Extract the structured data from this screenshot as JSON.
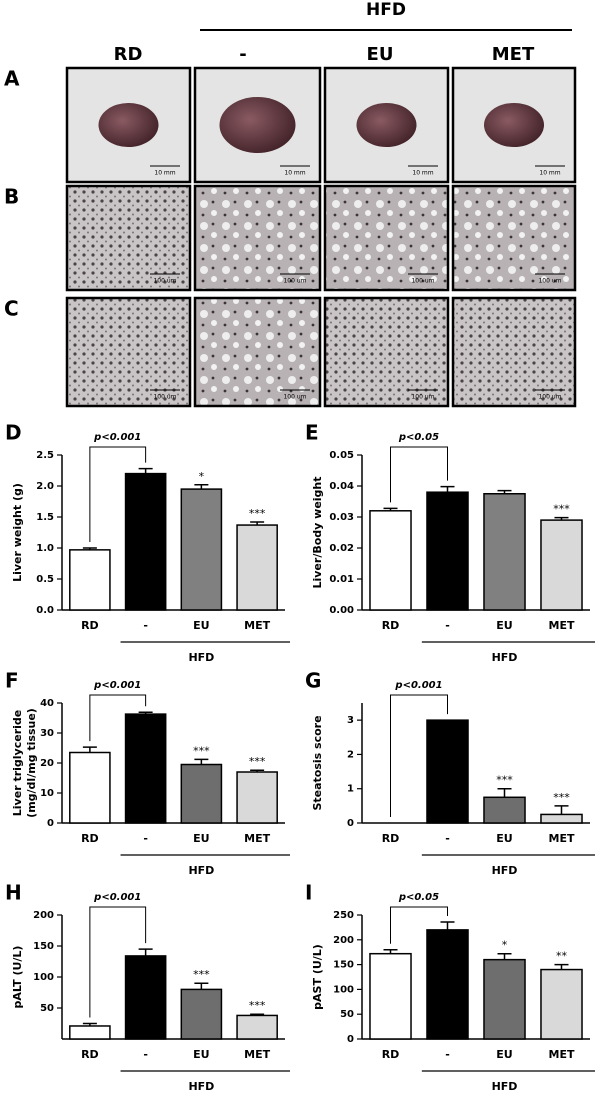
{
  "header": {
    "group": "HFD",
    "columns": [
      "RD",
      "-",
      "EU",
      "MET"
    ]
  },
  "image_rows": [
    {
      "label": "A",
      "scale_bars": [
        "10 mm",
        "10 mm",
        "10 mm",
        "10 mm"
      ]
    },
    {
      "label": "B",
      "scale_bars": [
        "100 um",
        "100 um",
        "100 um",
        "100 um"
      ]
    },
    {
      "label": "C",
      "scale_bars": [
        "100 um",
        "100 um",
        "100 um",
        "100 um"
      ]
    }
  ],
  "chart_data": [
    {
      "type": "bar",
      "panel": "D",
      "ylabel": [
        "Liver weight (g)"
      ],
      "categories": [
        "RD",
        "-",
        "EU",
        "MET"
      ],
      "group": "HFD",
      "values": [
        0.97,
        2.2,
        1.95,
        1.37
      ],
      "errors": [
        0.03,
        0.08,
        0.07,
        0.05
      ],
      "colors": [
        "#ffffff",
        "#000000",
        "#808080",
        "#d9d9d9"
      ],
      "significance": [
        null,
        null,
        "*",
        "***"
      ],
      "comparison": "p<0.001",
      "ylim": [
        0,
        2.5
      ],
      "yticks": [
        {
          "value": 0,
          "label": "0.0"
        },
        0.5,
        {
          "value": 1,
          "label": "1.0"
        },
        1.5,
        {
          "value": 2,
          "label": "2.0"
        },
        2.5
      ]
    },
    {
      "type": "bar",
      "panel": "E",
      "ylabel": [
        "Liver/Body weight"
      ],
      "categories": [
        "RD",
        "-",
        "EU",
        "MET"
      ],
      "group": "HFD",
      "values": [
        0.032,
        0.038,
        0.0375,
        0.029
      ],
      "errors": [
        0.0008,
        0.0018,
        0.001,
        0.0008
      ],
      "colors": [
        "#ffffff",
        "#000000",
        "#808080",
        "#d9d9d9"
      ],
      "significance": [
        null,
        null,
        null,
        "***"
      ],
      "comparison": "p<0.05",
      "ylim": [
        0,
        0.05
      ],
      "yticks": [
        {
          "value": 0,
          "label": "0.00"
        },
        0.01,
        0.02,
        0.03,
        0.04,
        0.05
      ]
    },
    {
      "type": "bar",
      "panel": "F",
      "ylabel": [
        "Liver triglyceride",
        "(mg/dl/mg tissue)"
      ],
      "categories": [
        "RD",
        "-",
        "EU",
        "MET"
      ],
      "group": "HFD",
      "values": [
        23.5,
        36.3,
        19.5,
        17
      ],
      "errors": [
        1.8,
        0.6,
        1.7,
        0.6
      ],
      "colors": [
        "#ffffff",
        "#000000",
        "#6e6e6e",
        "#d9d9d9"
      ],
      "significance": [
        null,
        null,
        "***",
        "***"
      ],
      "comparison": "p<0.001",
      "ylim": [
        0,
        40
      ],
      "yticks": [
        0,
        10,
        20,
        30,
        40
      ]
    },
    {
      "type": "bar",
      "panel": "G",
      "ylabel": [
        "Steatosis score"
      ],
      "categories": [
        "RD",
        "-",
        "EU",
        "MET"
      ],
      "group": "HFD",
      "values": [
        0,
        3,
        0.75,
        0.25
      ],
      "errors": [
        0,
        0,
        0.25,
        0.25
      ],
      "colors": [
        "#ffffff",
        "#000000",
        "#6e6e6e",
        "#d9d9d9"
      ],
      "significance": [
        null,
        null,
        "***",
        "***"
      ],
      "comparison": "p<0.001",
      "ylim": [
        0,
        3.5
      ],
      "yticks": [
        0,
        1,
        2,
        3
      ]
    },
    {
      "type": "bar",
      "panel": "H",
      "ylabel": [
        "pALT (U/L)"
      ],
      "categories": [
        "RD",
        "-",
        "EU",
        "MET"
      ],
      "group": "HFD",
      "values": [
        21,
        134,
        80,
        38
      ],
      "errors": [
        4,
        11,
        10,
        2
      ],
      "colors": [
        "#ffffff",
        "#000000",
        "#6e6e6e",
        "#d9d9d9"
      ],
      "significance": [
        null,
        null,
        "***",
        "***"
      ],
      "comparison": "p<0.001",
      "ylim": [
        0,
        200
      ],
      "yticks": [
        50,
        100,
        150,
        200
      ]
    },
    {
      "type": "bar",
      "panel": "I",
      "ylabel": [
        "pAST (U/L)"
      ],
      "categories": [
        "RD",
        "-",
        "EU",
        "MET"
      ],
      "group": "HFD",
      "values": [
        172,
        220,
        160,
        140
      ],
      "errors": [
        8,
        16,
        12,
        10
      ],
      "colors": [
        "#ffffff",
        "#000000",
        "#6e6e6e",
        "#d9d9d9"
      ],
      "significance": [
        null,
        null,
        "*",
        "**"
      ],
      "comparison": "p<0.05",
      "ylim": [
        0,
        250
      ],
      "yticks": [
        0,
        50,
        100,
        150,
        200,
        250
      ]
    }
  ]
}
